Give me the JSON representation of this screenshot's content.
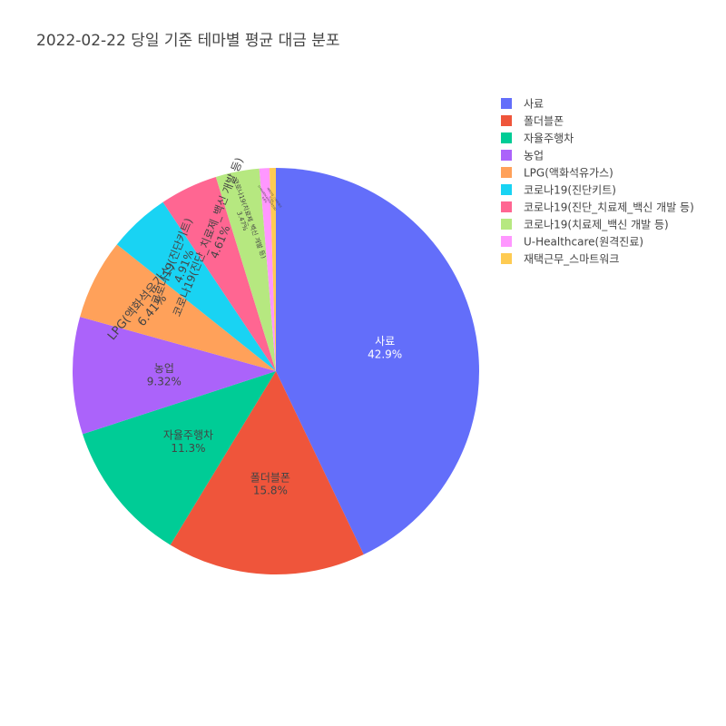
{
  "chart_data": {
    "type": "pie",
    "title": "2022-02-22 당일 기준 테마별 평균 대금 분포",
    "direction": "clockwise",
    "start": "12 o'clock",
    "slices": [
      {
        "label": "사료",
        "value": 42.9,
        "pct_label": "42.9%",
        "color": "#636efa"
      },
      {
        "label": "폴더블폰",
        "value": 15.8,
        "pct_label": "15.8%",
        "color": "#ef553b"
      },
      {
        "label": "자율주행차",
        "value": 11.3,
        "pct_label": "11.3%",
        "color": "#00cc96"
      },
      {
        "label": "농업",
        "value": 9.32,
        "pct_label": "9.32%",
        "color": "#ab63fa"
      },
      {
        "label": "LPG(액화석유가스)",
        "value": 6.41,
        "pct_label": "6.41%",
        "color": "#ffa15a"
      },
      {
        "label": "코로나19(진단키트)",
        "value": 4.91,
        "pct_label": "4.91%",
        "color": "#19d3f3"
      },
      {
        "label": "코로나19(진단_치료제_백신 개발 등)",
        "value": 4.61,
        "pct_label": "4.61%",
        "color": "#ff6692"
      },
      {
        "label": "코로나19(치료제_백신 개발 등)",
        "value": 3.47,
        "pct_label": "3.47%",
        "color": "#b6e880"
      },
      {
        "label": "U-Healthcare(원격진료)",
        "value": 0.8,
        "pct_label": "0.8%",
        "color": "#ff97ff"
      },
      {
        "label": "재택근무_스마트워크",
        "value": 0.5,
        "pct_label": "0.5%",
        "color": "#fecb52"
      }
    ],
    "legend": "top-right"
  }
}
